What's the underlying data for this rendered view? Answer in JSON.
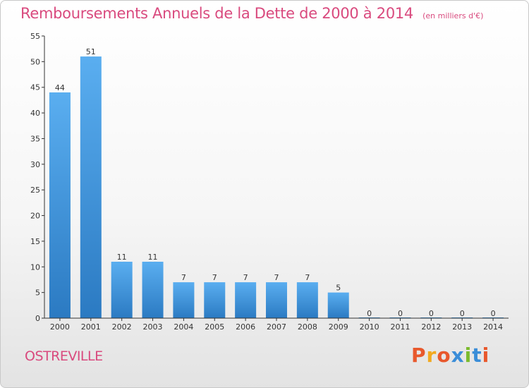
{
  "chart_data": {
    "type": "bar",
    "title": "Remboursements Annuels de la Dette de 2000 à 2014",
    "subtitle": "(en milliers d'€)",
    "categories": [
      "2000",
      "2001",
      "2002",
      "2003",
      "2004",
      "2005",
      "2006",
      "2007",
      "2008",
      "2009",
      "2010",
      "2011",
      "2012",
      "2013",
      "2014"
    ],
    "values": [
      44,
      51,
      11,
      11,
      7,
      7,
      7,
      7,
      7,
      5,
      0,
      0,
      0,
      0,
      0
    ],
    "ylim": [
      0,
      55
    ],
    "yticks": [
      0,
      5,
      10,
      15,
      20,
      25,
      30,
      35,
      40,
      45,
      50,
      55
    ],
    "grid": false,
    "bar_color": "#3a8fd6"
  },
  "place_name": "OSTREVILLE",
  "logo": {
    "text": "Proxiti",
    "letters": [
      "P",
      "r",
      "o",
      "x",
      "i",
      "t",
      "i"
    ]
  }
}
